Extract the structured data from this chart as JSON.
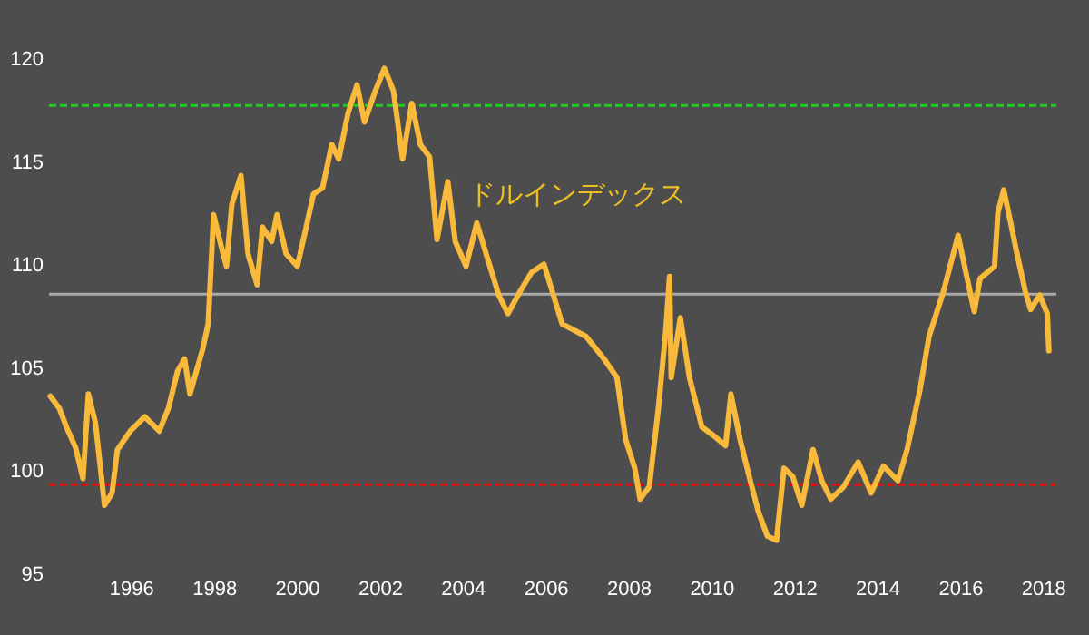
{
  "chart_data": {
    "type": "line",
    "annotations": [
      "ドルインデックス"
    ],
    "x": [
      1994.03,
      1994.25,
      1994.42,
      1994.64,
      1994.82,
      1994.95,
      1995.12,
      1995.34,
      1995.52,
      1995.65,
      1995.96,
      1996.31,
      1996.66,
      1996.88,
      1997.1,
      1997.27,
      1997.4,
      1997.71,
      1997.84,
      1997.97,
      1998.15,
      1998.28,
      1998.41,
      1998.63,
      1998.8,
      1999.02,
      1999.15,
      1999.37,
      1999.5,
      1999.72,
      1999.99,
      2000.16,
      2000.38,
      2000.6,
      2000.82,
      2000.99,
      2001.21,
      2001.43,
      2001.61,
      2001.87,
      2002.09,
      2002.31,
      2002.53,
      2002.75,
      2002.96,
      2003.18,
      2003.36,
      2003.62,
      2003.8,
      2004.06,
      2004.32,
      2004.59,
      2004.85,
      2005.07,
      2005.37,
      2005.64,
      2005.94,
      2006.38,
      2006.95,
      2007.39,
      2007.7,
      2007.91,
      2008.13,
      2008.26,
      2008.48,
      2008.7,
      2008.88,
      2008.97,
      2009.01,
      2009.23,
      2009.45,
      2009.75,
      2010.02,
      2010.32,
      2010.45,
      2010.67,
      2010.89,
      2011.11,
      2011.33,
      2011.55,
      2011.73,
      2011.94,
      2012.16,
      2012.43,
      2012.64,
      2012.86,
      2013.17,
      2013.52,
      2013.83,
      2014.13,
      2014.48,
      2014.7,
      2015.01,
      2015.23,
      2015.58,
      2015.93,
      2016.15,
      2016.32,
      2016.46,
      2016.81,
      2016.89,
      2017.03,
      2017.2,
      2017.33,
      2017.55,
      2017.68,
      2017.9,
      2018.08,
      2018.12
    ],
    "series": [
      {
        "color": "#f9b93a",
        "values": [
          103.6,
          103.0,
          102.1,
          101.1,
          99.6,
          103.7,
          102.3,
          98.3,
          98.9,
          101.0,
          101.9,
          102.6,
          101.9,
          103.0,
          104.8,
          105.4,
          103.7,
          105.9,
          107.1,
          112.4,
          110.9,
          109.9,
          112.9,
          114.3,
          110.5,
          109.0,
          111.8,
          111.1,
          112.4,
          110.5,
          109.9,
          111.4,
          113.4,
          113.7,
          115.8,
          115.1,
          117.3,
          118.7,
          116.9,
          118.4,
          119.5,
          118.4,
          115.1,
          117.8,
          115.8,
          115.2,
          111.2,
          114.0,
          111.1,
          109.9,
          112.0,
          110.2,
          108.5,
          107.6,
          108.7,
          109.6,
          110.0,
          107.1,
          106.5,
          105.4,
          104.5,
          101.5,
          100.1,
          98.6,
          99.2,
          103.0,
          106.8,
          109.4,
          104.5,
          107.4,
          104.5,
          102.1,
          101.7,
          101.2,
          103.7,
          101.5,
          99.7,
          98.0,
          96.8,
          96.6,
          100.1,
          99.7,
          98.3,
          101.0,
          99.5,
          98.6,
          99.2,
          100.4,
          98.9,
          100.2,
          99.5,
          101.0,
          103.9,
          106.5,
          108.7,
          111.4,
          109.3,
          107.7,
          109.3,
          109.9,
          112.5,
          113.6,
          112.0,
          110.7,
          108.7,
          107.8,
          108.5,
          107.6,
          105.8
        ]
      }
    ],
    "xlim": [
      1994.0,
      2018.3
    ],
    "ylim": [
      95,
      120
    ],
    "xticks": [
      1996,
      1998,
      2000,
      2002,
      2004,
      2006,
      2008,
      2010,
      2012,
      2014,
      2016,
      2018
    ],
    "yticks": [
      95,
      100,
      105,
      110,
      115,
      120
    ],
    "ref_lines": [
      {
        "axis": "y",
        "value": 117.7,
        "color": "#22cc22",
        "line_style": "dashed"
      },
      {
        "axis": "y",
        "value": 108.55,
        "color": "#aaaaaa",
        "line_style": "solid"
      },
      {
        "axis": "y",
        "value": 99.3,
        "color": "#dd1111",
        "line_style": "dashed"
      }
    ],
    "grid": false,
    "marker": "none",
    "line_style": "solid"
  }
}
